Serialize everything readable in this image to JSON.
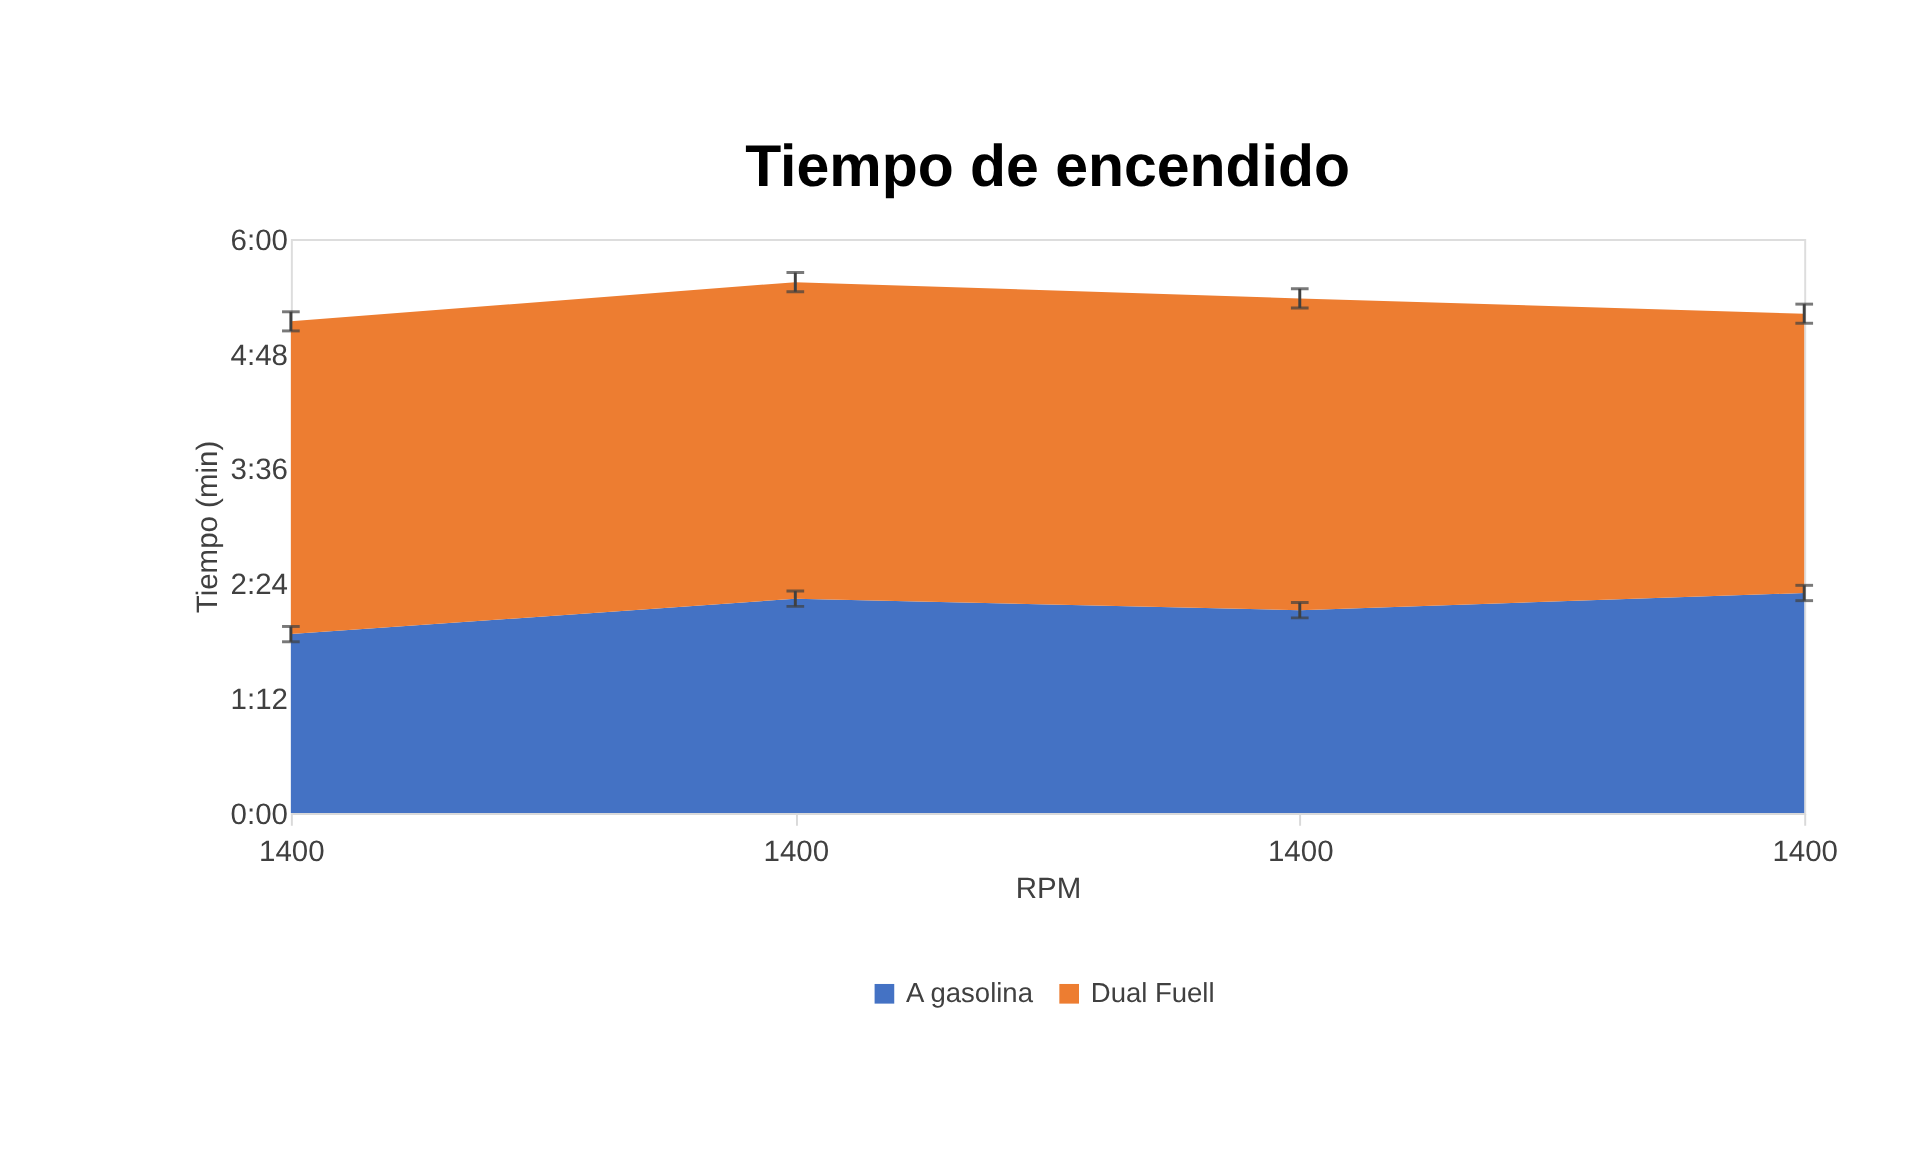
{
  "chart_data": {
    "type": "area",
    "title": "Tiempo de encendido",
    "xlabel": "RPM",
    "ylabel": "Tiempo (min)",
    "categories": [
      "1400",
      "1400",
      "1400",
      "1400"
    ],
    "stacked": true,
    "series": [
      {
        "name": "A gasolina",
        "color": "#4472c4",
        "values": [
          1.87,
          2.24,
          2.12,
          2.3
        ],
        "errors": [
          0.08,
          0.08,
          0.08,
          0.08
        ]
      },
      {
        "name": "Dual Fuell",
        "color": "#ed7d31",
        "values": [
          3.27,
          3.31,
          3.26,
          2.92
        ],
        "errors": [
          0.1,
          0.1,
          0.1,
          0.1
        ]
      }
    ],
    "ylim": [
      0,
      6
    ],
    "yticks": [
      {
        "value": 0,
        "label": "0:00"
      },
      {
        "value": 1.2,
        "label": "1:12"
      },
      {
        "value": 2.4,
        "label": "2:24"
      },
      {
        "value": 3.6,
        "label": "3:36"
      },
      {
        "value": 4.8,
        "label": "4:48"
      },
      {
        "value": 6,
        "label": "6:00"
      }
    ],
    "grid": false,
    "legend": "bottom"
  }
}
